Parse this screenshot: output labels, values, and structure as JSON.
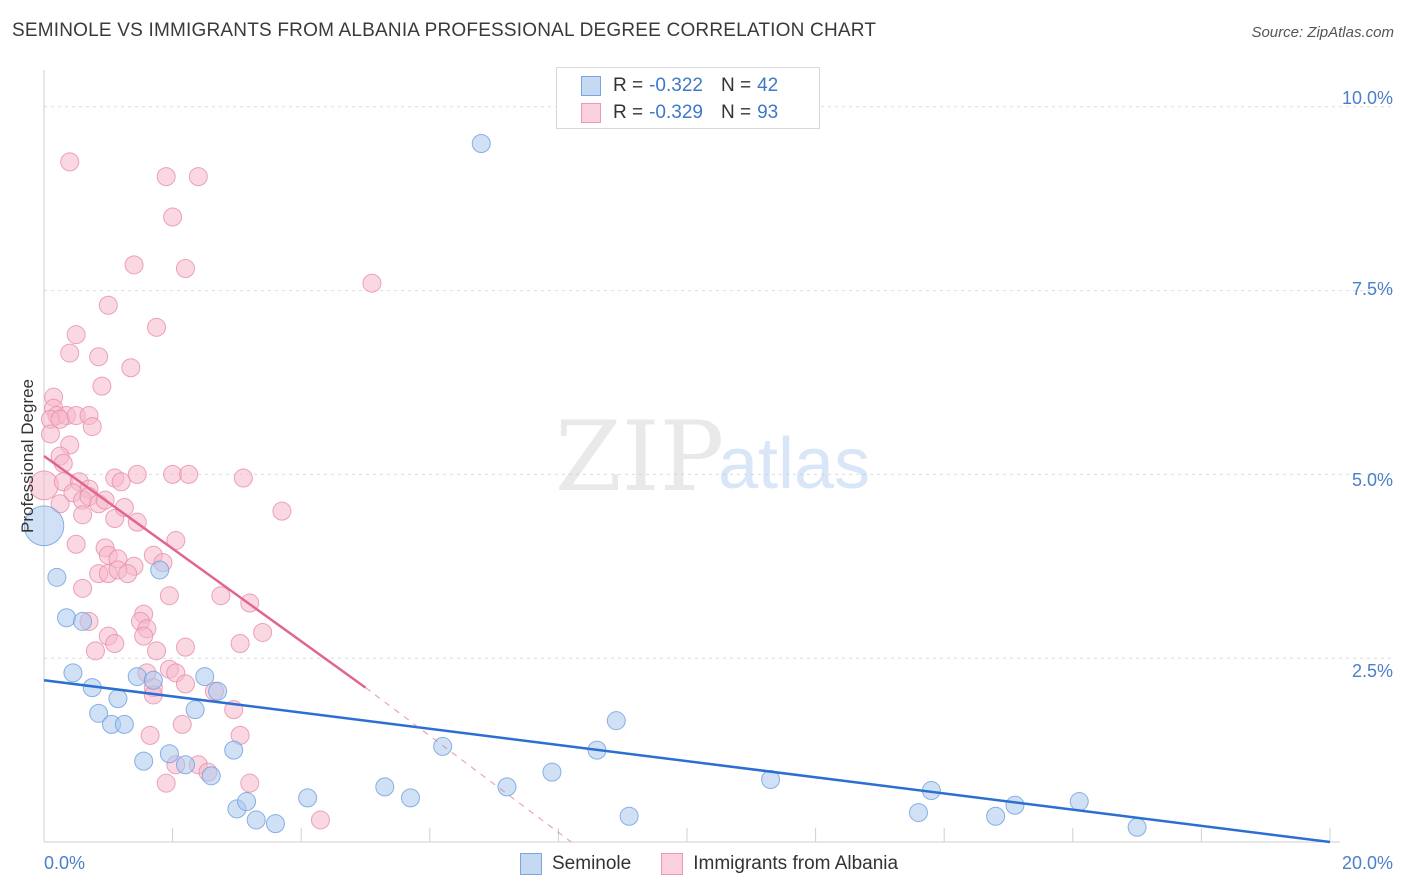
{
  "header": {
    "title": "SEMINOLE VS IMMIGRANTS FROM ALBANIA PROFESSIONAL DEGREE CORRELATION CHART",
    "source": "Source: ZipAtlas.com"
  },
  "watermark": {
    "zip": "ZIP",
    "atlas": "atlas"
  },
  "legend": {
    "r_label": "R =",
    "n_label": "N =",
    "seminole": {
      "r": "-0.322",
      "n": "42"
    },
    "albania": {
      "r": "-0.329",
      "n": "93"
    }
  },
  "bottom_legend": {
    "seminole": "Seminole",
    "albania": "Immigrants from Albania"
  },
  "colors": {
    "seminole_fill": "#a9c8ee",
    "seminole_stroke": "#6f9fdc",
    "seminole_line": "#2b6fd0",
    "albania_fill": "#f6b8cb",
    "albania_stroke": "#e98cab",
    "albania_line": "#e0668f",
    "axis_text": "#4a80c8",
    "grid": "#dcdcdc"
  },
  "chart_data": {
    "type": "scatter",
    "title": "SEMINOLE VS IMMIGRANTS FROM ALBANIA PROFESSIONAL DEGREE CORRELATION CHART",
    "xlabel": "",
    "ylabel": "Professional Degree",
    "xlim": [
      0,
      20
    ],
    "ylim": [
      0,
      10.5
    ],
    "x_tick_labels": [
      "0.0%",
      "20.0%"
    ],
    "y_ticks": [
      2.5,
      5.0,
      7.5,
      10.0
    ],
    "y_tick_labels": [
      "2.5%",
      "5.0%",
      "7.5%",
      "10.0%"
    ],
    "series": [
      {
        "name": "Seminole",
        "r": -0.322,
        "n": 42,
        "trend": {
          "x": [
            0,
            20
          ],
          "y": [
            2.2,
            0.0
          ]
        },
        "points": [
          [
            0.0,
            4.3,
            2.2
          ],
          [
            6.8,
            9.5,
            1
          ],
          [
            0.2,
            3.6,
            1
          ],
          [
            1.8,
            3.7,
            1
          ],
          [
            0.35,
            3.05,
            1
          ],
          [
            0.6,
            3.0,
            1
          ],
          [
            0.45,
            2.3,
            1
          ],
          [
            0.75,
            2.1,
            1
          ],
          [
            1.45,
            2.25,
            1
          ],
          [
            1.7,
            2.2,
            1
          ],
          [
            2.5,
            2.25,
            1
          ],
          [
            2.7,
            2.05,
            1
          ],
          [
            1.15,
            1.95,
            1
          ],
          [
            0.85,
            1.75,
            1
          ],
          [
            1.05,
            1.6,
            1
          ],
          [
            1.25,
            1.6,
            1
          ],
          [
            2.35,
            1.8,
            1
          ],
          [
            1.55,
            1.1,
            1
          ],
          [
            1.95,
            1.2,
            1
          ],
          [
            2.2,
            1.05,
            1
          ],
          [
            2.95,
            1.25,
            1
          ],
          [
            2.6,
            0.9,
            1
          ],
          [
            3.0,
            0.45,
            1
          ],
          [
            3.15,
            0.55,
            1
          ],
          [
            3.3,
            0.3,
            1
          ],
          [
            3.6,
            0.25,
            1
          ],
          [
            4.1,
            0.6,
            1
          ],
          [
            5.3,
            0.75,
            1
          ],
          [
            5.7,
            0.6,
            1
          ],
          [
            6.2,
            1.3,
            1
          ],
          [
            7.2,
            0.75,
            1
          ],
          [
            7.9,
            0.95,
            1
          ],
          [
            8.6,
            1.25,
            1
          ],
          [
            9.1,
            0.35,
            1
          ],
          [
            8.9,
            1.65,
            1
          ],
          [
            11.3,
            0.85,
            1
          ],
          [
            13.6,
            0.4,
            1
          ],
          [
            13.8,
            0.7,
            1
          ],
          [
            14.8,
            0.35,
            1
          ],
          [
            15.1,
            0.5,
            1
          ],
          [
            16.1,
            0.55,
            1
          ],
          [
            17.0,
            0.2,
            1
          ]
        ]
      },
      {
        "name": "Immigrants from Albania",
        "r": -0.329,
        "n": 93,
        "trend": {
          "x": [
            0,
            5.0
          ],
          "y": [
            5.25,
            2.1
          ],
          "dashed_to": {
            "x": 8.2,
            "y": 0.0
          }
        },
        "points": [
          [
            0.4,
            9.25,
            1
          ],
          [
            1.9,
            9.05,
            1
          ],
          [
            2.4,
            9.05,
            1
          ],
          [
            2.0,
            8.5,
            1
          ],
          [
            1.4,
            7.85,
            1
          ],
          [
            2.2,
            7.8,
            1
          ],
          [
            5.1,
            7.6,
            1
          ],
          [
            1.0,
            7.3,
            1
          ],
          [
            1.75,
            7.0,
            1
          ],
          [
            0.5,
            6.9,
            1
          ],
          [
            0.4,
            6.65,
            1
          ],
          [
            0.85,
            6.6,
            1
          ],
          [
            1.35,
            6.45,
            1
          ],
          [
            0.9,
            6.2,
            1
          ],
          [
            0.15,
            6.05,
            1
          ],
          [
            0.15,
            5.9,
            1
          ],
          [
            0.2,
            5.8,
            1
          ],
          [
            0.35,
            5.8,
            1
          ],
          [
            0.1,
            5.75,
            1
          ],
          [
            0.25,
            5.75,
            1
          ],
          [
            0.5,
            5.8,
            1
          ],
          [
            0.7,
            5.8,
            1
          ],
          [
            0.75,
            5.65,
            1
          ],
          [
            0.1,
            5.55,
            1
          ],
          [
            0.4,
            5.4,
            1
          ],
          [
            0.25,
            5.25,
            1
          ],
          [
            0.3,
            5.15,
            1
          ],
          [
            1.45,
            5.0,
            1
          ],
          [
            2.0,
            5.0,
            1
          ],
          [
            2.25,
            5.0,
            1
          ],
          [
            3.1,
            4.95,
            1
          ],
          [
            0.0,
            4.85,
            1.6
          ],
          [
            0.3,
            4.9,
            1
          ],
          [
            0.55,
            4.9,
            1
          ],
          [
            0.7,
            4.8,
            1
          ],
          [
            1.1,
            4.95,
            1
          ],
          [
            1.2,
            4.9,
            1
          ],
          [
            0.45,
            4.75,
            1
          ],
          [
            0.6,
            4.65,
            1
          ],
          [
            0.7,
            4.7,
            1
          ],
          [
            0.85,
            4.6,
            1
          ],
          [
            0.95,
            4.65,
            1
          ],
          [
            0.25,
            4.6,
            1
          ],
          [
            0.6,
            4.45,
            1
          ],
          [
            1.1,
            4.4,
            1
          ],
          [
            1.25,
            4.55,
            1
          ],
          [
            1.45,
            4.35,
            1
          ],
          [
            3.7,
            4.5,
            1
          ],
          [
            2.05,
            4.1,
            1
          ],
          [
            0.5,
            4.05,
            1
          ],
          [
            0.95,
            4.0,
            1
          ],
          [
            1.0,
            3.9,
            1
          ],
          [
            1.15,
            3.85,
            1
          ],
          [
            1.4,
            3.75,
            1
          ],
          [
            1.7,
            3.9,
            1
          ],
          [
            1.85,
            3.8,
            1
          ],
          [
            0.85,
            3.65,
            1
          ],
          [
            1.0,
            3.65,
            1
          ],
          [
            1.15,
            3.7,
            1
          ],
          [
            1.3,
            3.65,
            1
          ],
          [
            0.6,
            3.45,
            1
          ],
          [
            1.95,
            3.35,
            1
          ],
          [
            2.75,
            3.35,
            1
          ],
          [
            3.2,
            3.25,
            1
          ],
          [
            0.7,
            3.0,
            1
          ],
          [
            1.55,
            3.1,
            1
          ],
          [
            1.5,
            3.0,
            1
          ],
          [
            1.6,
            2.9,
            1
          ],
          [
            1.55,
            2.8,
            1
          ],
          [
            1.0,
            2.8,
            1
          ],
          [
            1.1,
            2.7,
            1
          ],
          [
            2.2,
            2.65,
            1
          ],
          [
            3.05,
            2.7,
            1
          ],
          [
            3.4,
            2.85,
            1
          ],
          [
            0.8,
            2.6,
            1
          ],
          [
            1.75,
            2.6,
            1
          ],
          [
            1.6,
            2.3,
            1
          ],
          [
            1.95,
            2.35,
            1
          ],
          [
            2.05,
            2.3,
            1
          ],
          [
            1.7,
            2.1,
            1
          ],
          [
            2.2,
            2.15,
            1
          ],
          [
            1.7,
            2.0,
            1
          ],
          [
            2.65,
            2.05,
            1
          ],
          [
            2.95,
            1.8,
            1
          ],
          [
            2.15,
            1.6,
            1
          ],
          [
            1.65,
            1.45,
            1
          ],
          [
            3.05,
            1.45,
            1
          ],
          [
            2.05,
            1.05,
            1
          ],
          [
            2.4,
            1.05,
            1
          ],
          [
            1.9,
            0.8,
            1
          ],
          [
            3.2,
            0.8,
            1
          ],
          [
            4.3,
            0.3,
            1
          ],
          [
            2.55,
            0.95,
            1
          ]
        ]
      }
    ]
  }
}
